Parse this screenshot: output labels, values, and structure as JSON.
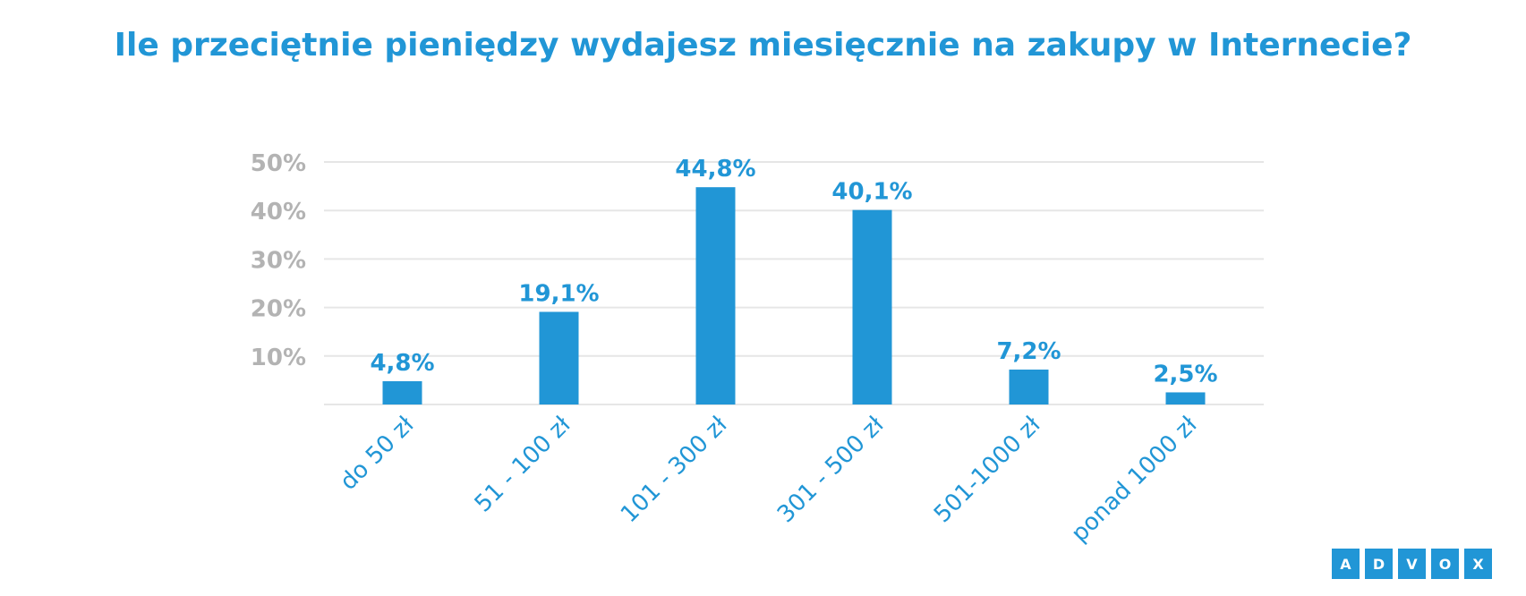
{
  "chart_data": {
    "type": "bar",
    "title": "Ile przeciętnie pieniędzy wydajesz miesięcznie na zakupy w Internecie?",
    "categories": [
      "do 50 zł",
      "51 - 100 zł",
      "101 - 300 zł",
      "301 - 500 zł",
      "501-1000 zł",
      "ponad 1000 zł"
    ],
    "values": [
      4.8,
      19.1,
      44.8,
      40.1,
      7.2,
      2.5
    ],
    "value_labels": [
      "4,8%",
      "19,1%",
      "44,8%",
      "40,1%",
      "7,2%",
      "2,5%"
    ],
    "yticks": [
      10,
      20,
      30,
      40,
      50
    ],
    "ytick_labels": [
      "10%",
      "20%",
      "30%",
      "40%",
      "50%"
    ],
    "ylim": [
      0,
      50
    ],
    "grid": true,
    "colors": {
      "bar": "#2196d6",
      "label": "#2196d6",
      "ytick": "#b3b3b3",
      "grid": "#e6e6e6"
    }
  },
  "logo": {
    "letters": [
      "A",
      "D",
      "V",
      "O",
      "X"
    ]
  }
}
